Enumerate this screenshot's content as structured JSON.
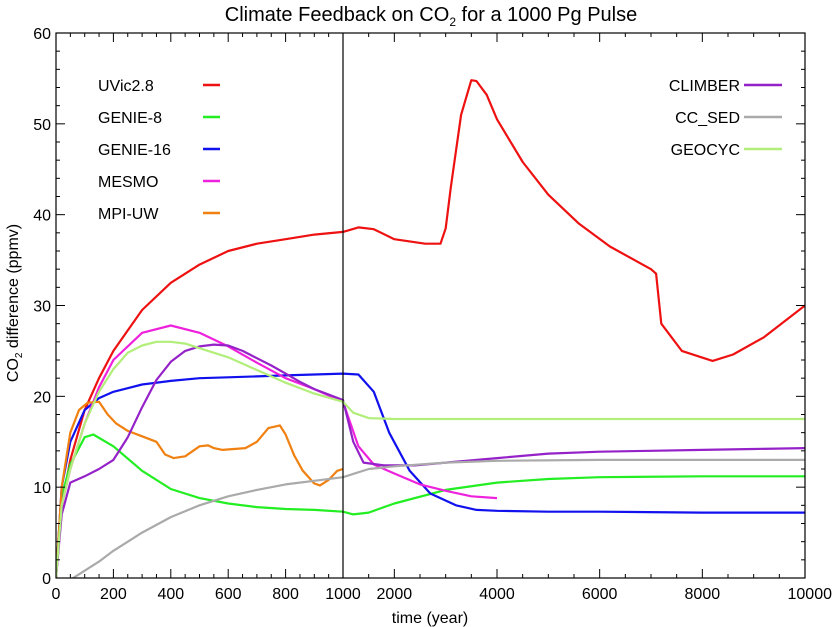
{
  "chart_data": {
    "type": "line",
    "title": {
      "prefix": "Climate Feedback on CO",
      "sub": "2",
      "suffix": " for a 1000 Pg Pulse"
    },
    "xlabel": "time (year)",
    "ylabel": {
      "prefix": "CO",
      "sub": "2",
      "suffix": " difference (ppmv)"
    },
    "xlim": [
      0,
      10000
    ],
    "ylim": [
      0,
      60
    ],
    "x_scale": "piecewise: linear 0-1000 on left panel, linear 1000-10000 on right panel",
    "panel_break_x": 1000,
    "grid": false,
    "legend_placement": [
      "top-left",
      "top-right"
    ],
    "xticks_left": [
      "0",
      "200",
      "400",
      "600",
      "800",
      "1000"
    ],
    "xticks_right": [
      "2000",
      "4000",
      "6000",
      "8000",
      "10000"
    ],
    "yticks": [
      "0",
      "10",
      "20",
      "30",
      "40",
      "50",
      "60"
    ],
    "series": [
      {
        "name": "UVic2.8",
        "color": "#ee1111",
        "legend": "left",
        "x": [
          0,
          20,
          50,
          100,
          150,
          200,
          300,
          400,
          500,
          600,
          700,
          800,
          900,
          1000,
          1300,
          1600,
          2000,
          2600,
          2900,
          3000,
          3100,
          3300,
          3500,
          3600,
          3800,
          4000,
          4500,
          5000,
          5600,
          6200,
          7000,
          7100,
          7200,
          7600,
          8200,
          8600,
          9200,
          10000
        ],
        "values": [
          0,
          8,
          13,
          18.5,
          22,
          25,
          29.5,
          32.5,
          34.5,
          36,
          36.8,
          37.3,
          37.8,
          38.1,
          38.6,
          38.4,
          37.3,
          36.8,
          36.8,
          38.5,
          43,
          51,
          54.8,
          54.7,
          53.2,
          50.5,
          45.8,
          42.2,
          39,
          36.5,
          34,
          33.5,
          28,
          25,
          23.9,
          24.6,
          26.5,
          30
        ]
      },
      {
        "name": "GENIE-8",
        "color": "#22ee22",
        "legend": "left",
        "x": [
          0,
          20,
          50,
          100,
          130,
          200,
          300,
          400,
          500,
          600,
          700,
          800,
          900,
          1000,
          1200,
          1500,
          2000,
          3000,
          4000,
          5000,
          6000,
          8000,
          10000
        ],
        "values": [
          0,
          9,
          12.5,
          15.5,
          15.8,
          14.5,
          11.8,
          9.8,
          8.8,
          8.2,
          7.8,
          7.6,
          7.5,
          7.3,
          7,
          7.2,
          8.2,
          9.7,
          10.5,
          10.9,
          11.1,
          11.2,
          11.2
        ]
      },
      {
        "name": "GENIE-16",
        "color": "#1111ee",
        "legend": "left",
        "x": [
          0,
          20,
          50,
          100,
          150,
          200,
          300,
          400,
          500,
          600,
          700,
          800,
          900,
          1000,
          1300,
          1600,
          1900,
          2300,
          2700,
          3200,
          3600,
          4000,
          5000,
          6000,
          8000,
          10000
        ],
        "values": [
          0,
          10,
          15,
          18.5,
          19.8,
          20.5,
          21.3,
          21.7,
          22,
          22.1,
          22.2,
          22.3,
          22.4,
          22.5,
          22.4,
          20.5,
          16,
          11.8,
          9.3,
          8,
          7.5,
          7.4,
          7.3,
          7.3,
          7.2,
          7.2
        ]
      },
      {
        "name": "MESMO",
        "color": "#ee22dd",
        "legend": "left",
        "x": [
          0,
          20,
          50,
          100,
          150,
          200,
          300,
          400,
          500,
          600,
          700,
          800,
          900,
          1000,
          1300,
          1600,
          2000,
          2500,
          3000,
          3500,
          4000
        ],
        "values": [
          0,
          8,
          12,
          17,
          21,
          24,
          27,
          27.8,
          27,
          25.5,
          23.7,
          22,
          20.8,
          19.4,
          14.5,
          12.5,
          11.5,
          10.3,
          9.6,
          9,
          8.8
        ]
      },
      {
        "name": "MPI-UW",
        "color": "#f08010",
        "legend": "left",
        "x": [
          0,
          20,
          50,
          80,
          110,
          150,
          180,
          210,
          250,
          300,
          350,
          380,
          410,
          450,
          500,
          530,
          550,
          580,
          620,
          660,
          700,
          740,
          780,
          800,
          830,
          860,
          900,
          920,
          950,
          980,
          1000
        ],
        "values": [
          0,
          10,
          16,
          18.5,
          19.3,
          19.4,
          18,
          17,
          16.2,
          15.6,
          15,
          13.6,
          13.2,
          13.4,
          14.5,
          14.6,
          14.3,
          14.1,
          14.2,
          14.3,
          15,
          16.5,
          16.8,
          15.8,
          13.5,
          11.8,
          10.4,
          10.2,
          10.8,
          11.8,
          12
        ]
      },
      {
        "name": "CLIMBER",
        "color": "#9422c8",
        "legend": "right",
        "x": [
          0,
          20,
          50,
          100,
          150,
          200,
          250,
          300,
          350,
          400,
          450,
          500,
          550,
          600,
          650,
          700,
          750,
          800,
          850,
          900,
          950,
          1000,
          1200,
          1400,
          1800,
          2400,
          3000,
          4000,
          5000,
          6000,
          7000,
          8000,
          9000,
          10000
        ],
        "values": [
          0,
          7,
          10.5,
          11.2,
          12,
          13,
          15.5,
          18.8,
          21.8,
          23.8,
          25,
          25.5,
          25.7,
          25.6,
          25,
          24.2,
          23.4,
          22.5,
          21.6,
          20.8,
          20.2,
          19.6,
          15,
          12.7,
          12.4,
          12.4,
          12.7,
          13.2,
          13.7,
          13.9,
          14,
          14.1,
          14.2,
          14.3
        ]
      },
      {
        "name": "CC_SED",
        "color": "#aaaaaa",
        "legend": "right",
        "x": [
          0,
          50,
          100,
          150,
          200,
          300,
          400,
          500,
          600,
          700,
          800,
          900,
          1000,
          1500,
          2000,
          3000,
          4000,
          6000,
          8000,
          10000
        ],
        "values": [
          -0.5,
          -0.2,
          0.8,
          1.8,
          3,
          5,
          6.7,
          8,
          9,
          9.7,
          10.3,
          10.7,
          11.1,
          12,
          12.3,
          12.7,
          12.9,
          13,
          13,
          13
        ]
      },
      {
        "name": "GEOCYC",
        "color": "#b2ee7a",
        "legend": "right",
        "x": [
          0,
          20,
          50,
          100,
          150,
          200,
          250,
          300,
          350,
          400,
          450,
          500,
          600,
          700,
          800,
          900,
          1000,
          1200,
          1500,
          2000,
          3000,
          4000,
          6000,
          8000,
          10000
        ],
        "values": [
          0,
          8,
          12,
          17,
          20.5,
          23,
          24.8,
          25.6,
          26,
          26,
          25.8,
          25.3,
          24.3,
          22.9,
          21.5,
          20.3,
          19.4,
          18.2,
          17.6,
          17.5,
          17.5,
          17.5,
          17.5,
          17.5,
          17.5
        ]
      }
    ]
  }
}
